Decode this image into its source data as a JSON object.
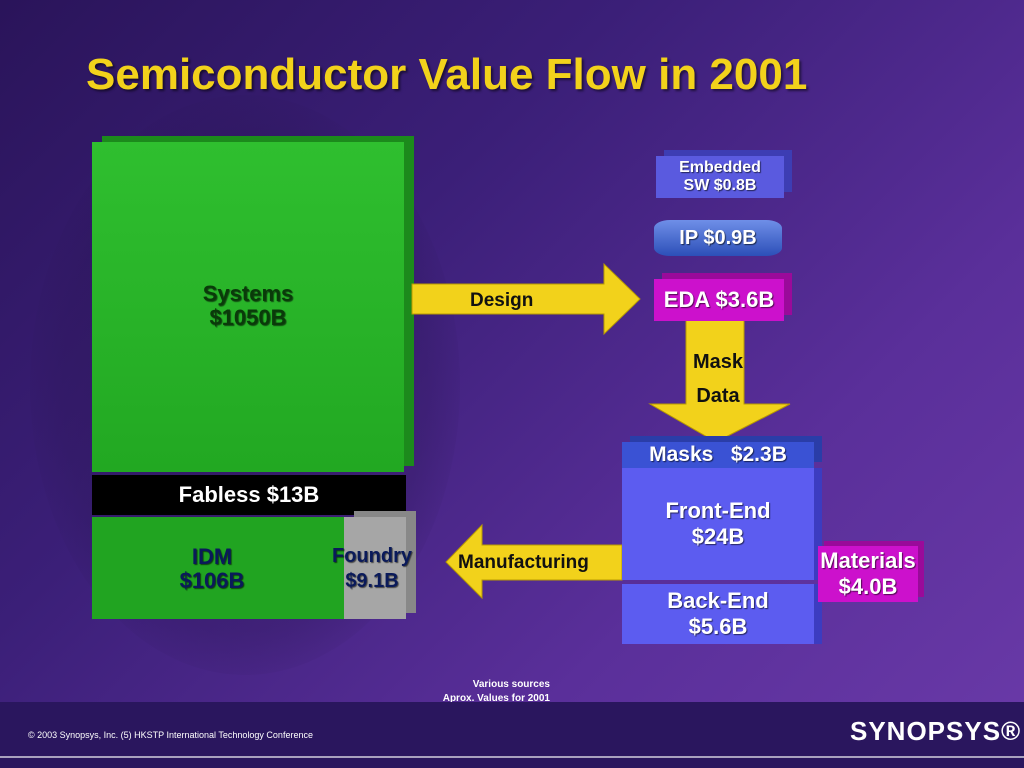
{
  "title": "Semiconductor Value Flow in 2001",
  "nodes": {
    "systems": {
      "name": "Systems",
      "value": "$1050B"
    },
    "fabless": "Fabless $13B",
    "idm": {
      "name": "IDM",
      "value": "$106B"
    },
    "foundry": {
      "name": "Foundry",
      "value": "$9.1B"
    },
    "embedded_sw": {
      "line1": "Embedded",
      "line2": "SW $0.8B"
    },
    "ip": "IP $0.9B",
    "eda": "EDA $3.6B",
    "masks": "Masks   $2.3B",
    "front_end": {
      "name": "Front-End",
      "value": "$24B"
    },
    "back_end": {
      "name": "Back-End",
      "value": "$5.6B"
    },
    "materials": {
      "name": "Materials",
      "value": "$4.0B"
    }
  },
  "arrows": {
    "design": "Design",
    "mask_data": {
      "line1": "Mask",
      "line2": "Data"
    },
    "manufacturing": "Manufacturing"
  },
  "notes": {
    "line1": "Various sources",
    "line2": "Aprox. Values for 2001"
  },
  "footer": {
    "copyright": "© 2003 Synopsys, Inc. (5) HKSTP International Technology Conference",
    "logo": "SYNOPSYS®"
  },
  "colors": {
    "title": "#f2d21b",
    "arrow": "#f2d21b",
    "systems": "#2fbf2f",
    "eda": "#cc11cc",
    "fab_blue": "#5c5cf0"
  }
}
